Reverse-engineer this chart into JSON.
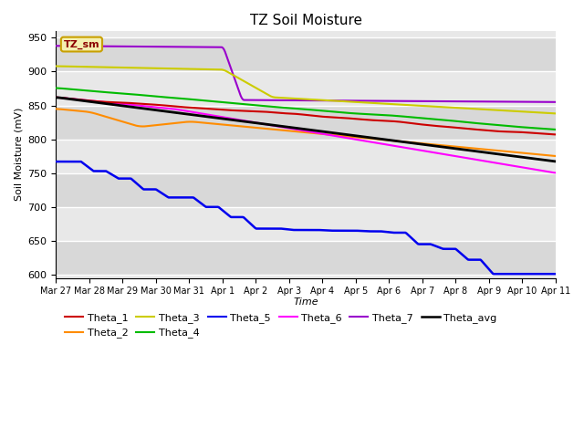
{
  "title": "TZ Soil Moisture",
  "xlabel": "Time",
  "ylabel": "Soil Moisture (mV)",
  "ylim": [
    595,
    960
  ],
  "yticks": [
    600,
    650,
    700,
    750,
    800,
    850,
    900,
    950
  ],
  "plot_bg_color": "#e8e8e8",
  "fig_bg_color": "#ffffff",
  "legend_label": "TZ_sm",
  "legend_box_color": "#f5f0b0",
  "legend_box_edge": "#c8a000",
  "legend_text_color": "#8b0000",
  "series": {
    "Theta_1": {
      "color": "#cc0000",
      "lw": 1.5
    },
    "Theta_2": {
      "color": "#ff8c00",
      "lw": 1.5
    },
    "Theta_3": {
      "color": "#cccc00",
      "lw": 1.5
    },
    "Theta_4": {
      "color": "#00bb00",
      "lw": 1.5
    },
    "Theta_5": {
      "color": "#0000ee",
      "lw": 1.8
    },
    "Theta_6": {
      "color": "#ff00ff",
      "lw": 1.5
    },
    "Theta_7": {
      "color": "#9900cc",
      "lw": 1.5
    },
    "Theta_avg": {
      "color": "#000000",
      "lw": 2.0
    }
  },
  "x_labels": [
    "Mar 27",
    "Mar 28",
    "Mar 29",
    "Mar 30",
    "Mar 31",
    "Apr 1",
    "Apr 2",
    "Apr 3",
    "Apr 4",
    "Apr 5",
    "Apr 6",
    "Apr 7",
    "Apr 8",
    "Apr 9",
    "Apr 10",
    "Apr 11"
  ],
  "band_colors": [
    "#d8d8d8",
    "#e8e8e8"
  ]
}
